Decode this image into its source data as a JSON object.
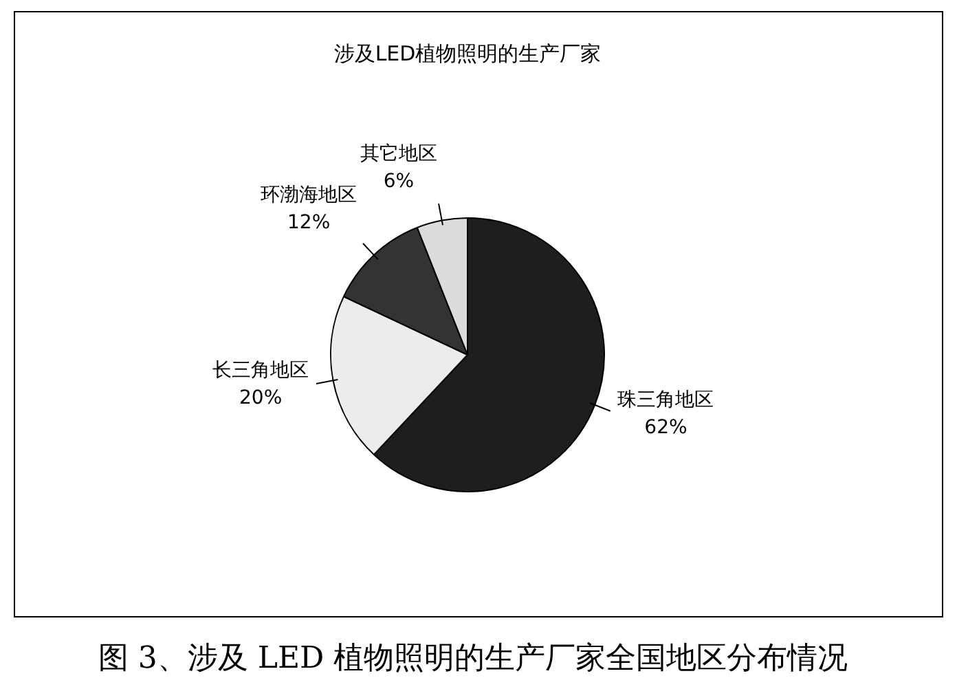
{
  "chart_data": {
    "type": "pie",
    "title": "涉及LED植物照明的生产厂家",
    "categories": [
      "珠三角地区",
      "长三角地区",
      "环渤海地区",
      "其它地区"
    ],
    "values": [
      62,
      20,
      12,
      6
    ],
    "colors": [
      "#1e1e1e",
      "#ececec",
      "#333333",
      "#dcdcdc"
    ],
    "value_labels": [
      "62%",
      "20%",
      "12%",
      "6%"
    ],
    "legend": false,
    "annotations": [
      "图 3、涉及 LED 植物照明的生产厂家全国地区分布情况"
    ]
  }
}
